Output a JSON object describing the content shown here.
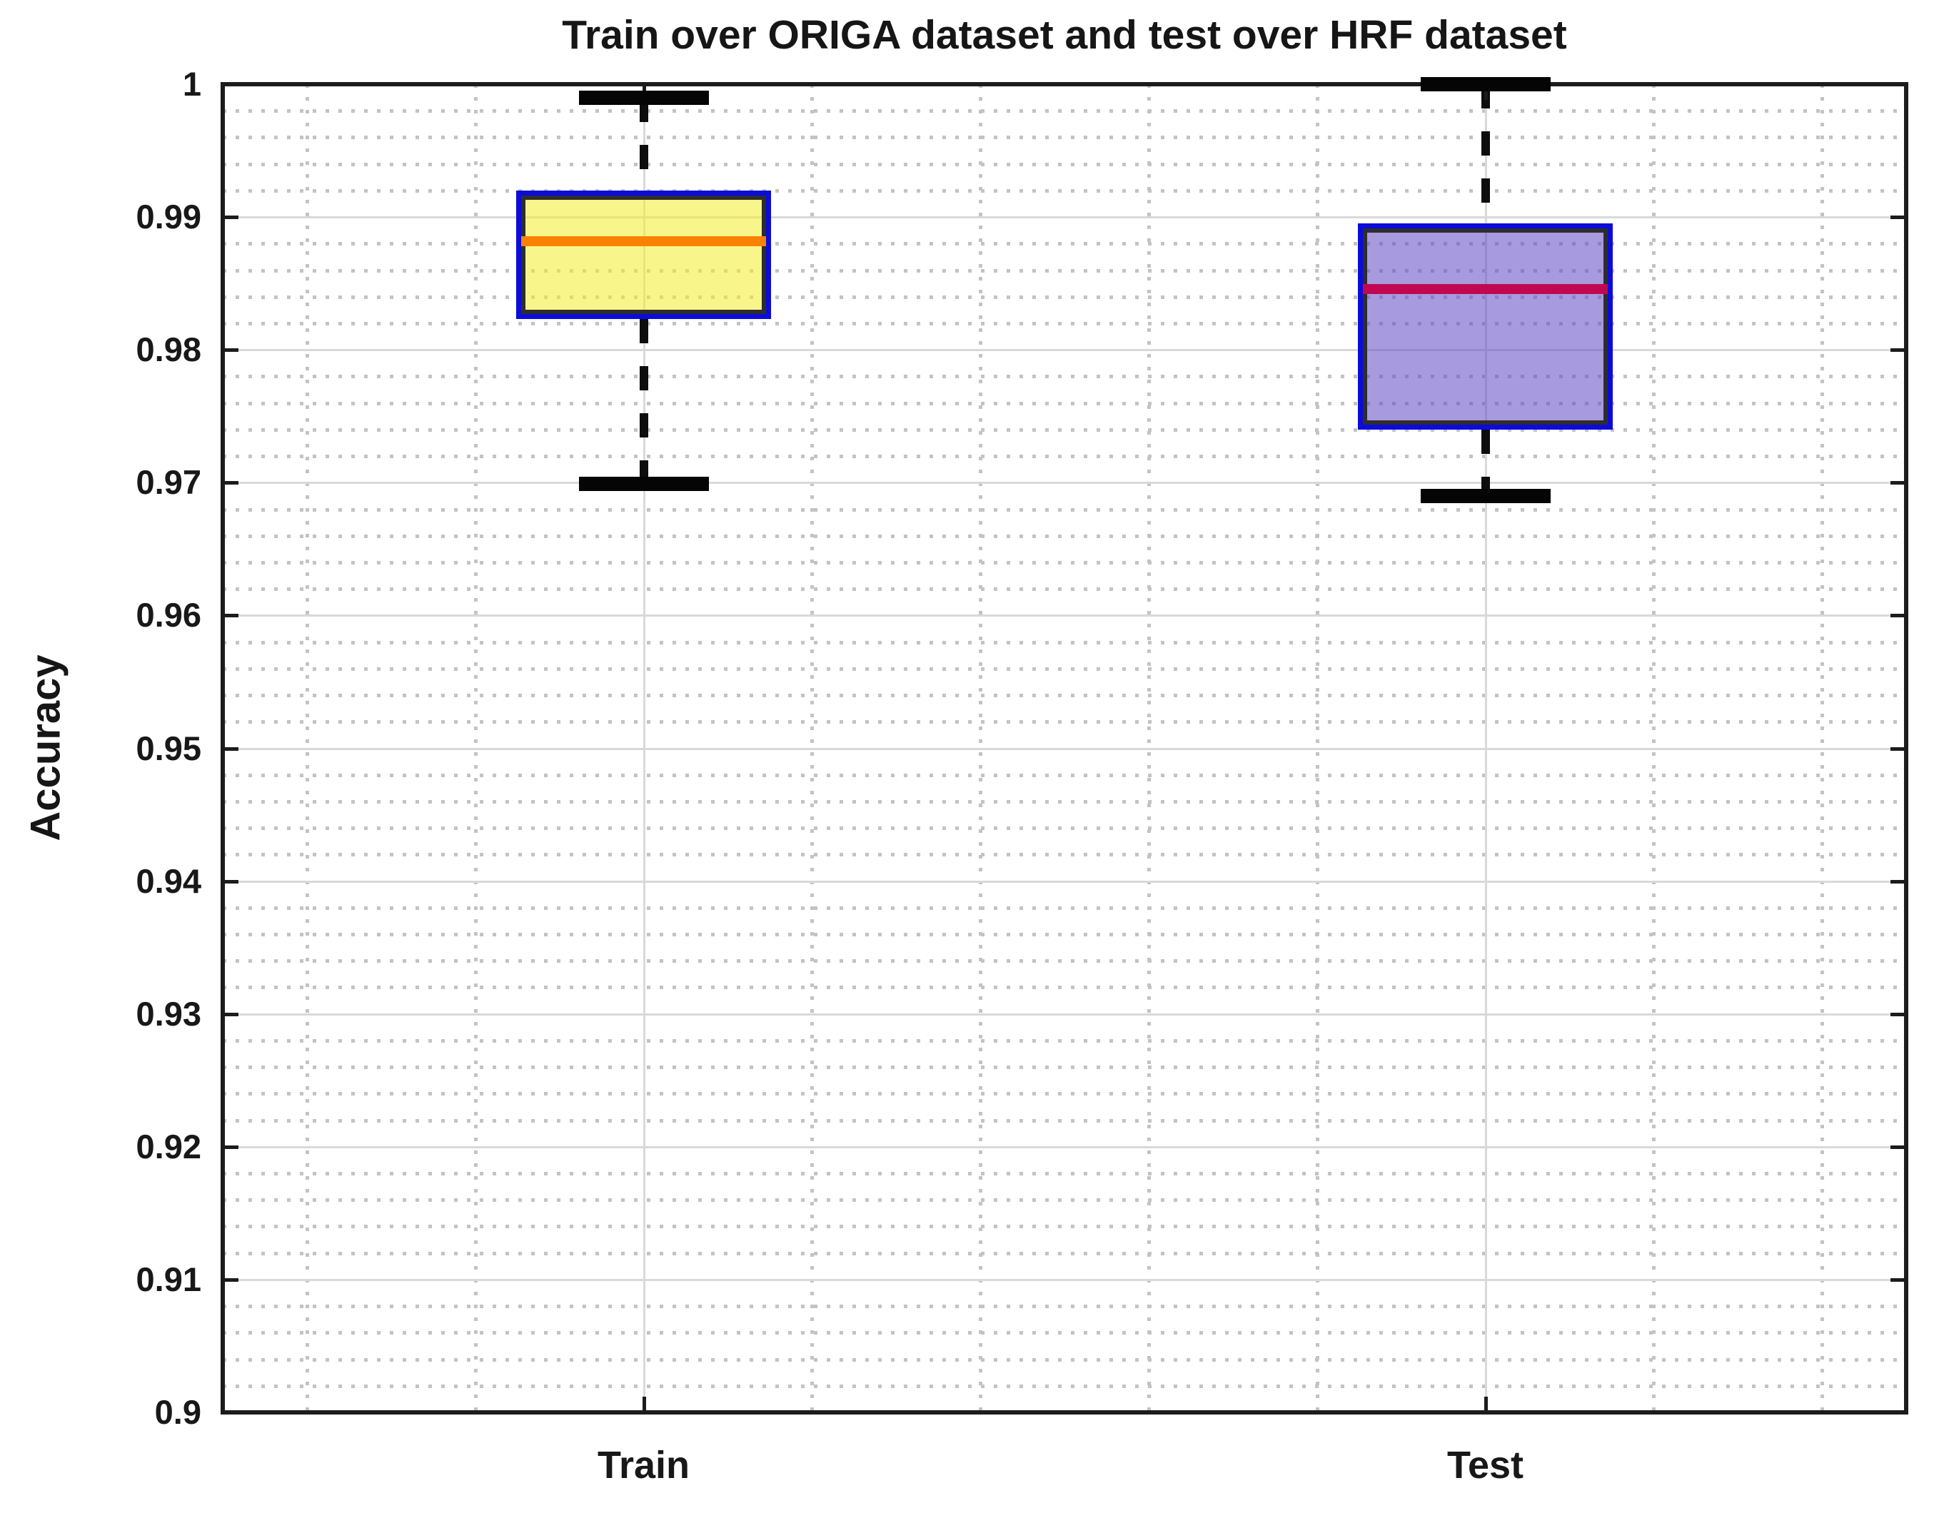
{
  "title": "Train over ORIGA dataset and test over HRF dataset",
  "ylabel": "Accuracy",
  "chart_data": {
    "type": "boxplot",
    "title": "Train over ORIGA dataset and test over HRF dataset",
    "xlabel": "",
    "ylabel": "Accuracy",
    "categories": [
      "Train",
      "Test"
    ],
    "ylim": [
      0.9,
      1.0
    ],
    "ytick_step": 0.01,
    "ytick_labels": [
      "1",
      "0.99",
      "0.98",
      "0.97",
      "0.96",
      "0.95",
      "0.94",
      "0.93",
      "0.92",
      "0.91",
      "0.9"
    ],
    "minor_grid_step_y": 0.002,
    "minor_grid_positions_x_units": [
      0.6,
      0.8,
      1.2,
      1.4,
      1.6,
      1.8,
      2.2,
      2.4
    ],
    "grid": {
      "major": true,
      "minor": true,
      "major_color": "#d9d9d9",
      "minor_dot_color": "#c3c3c3"
    },
    "series": [
      {
        "name": "Train",
        "whisker_low": 0.9699,
        "q1": 0.9823,
        "median": 0.9882,
        "q3": 0.992,
        "whisker_high": 0.999,
        "box_fill_color": "#F2ED2C",
        "box_fill_alpha": 0.55,
        "median_color": "#FB8200"
      },
      {
        "name": "Test",
        "whisker_low": 0.969,
        "q1": 0.974,
        "median": 0.9846,
        "q3": 0.9895,
        "whisker_high": 1.0,
        "box_fill_color": "#6147C3",
        "box_fill_alpha": 0.55,
        "median_color": "#C00850"
      }
    ],
    "box_edge_color": "#0B0BDA",
    "box_inner_edge_color": "#2D2D2D",
    "whisker_color": "#0d0d0d",
    "axis_color": "#1c1c1c"
  }
}
